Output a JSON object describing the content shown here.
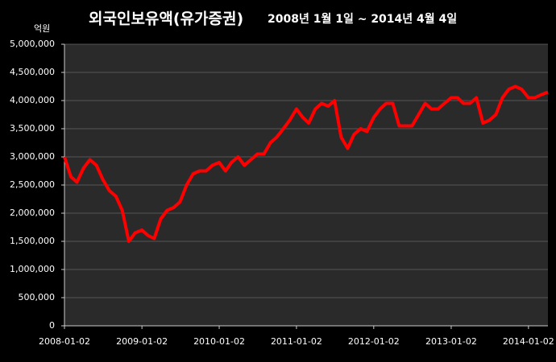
{
  "chart_data": {
    "type": "line",
    "title": "외국인보유액(유가증권)",
    "subtitle": "2008년 1월 1일 ~ 2014년 4월 4일",
    "y_unit": "억원",
    "x": [
      "2008-01-02",
      "2008-02-01",
      "2008-03-01",
      "2008-04-01",
      "2008-05-01",
      "2008-06-01",
      "2008-07-01",
      "2008-08-01",
      "2008-09-01",
      "2008-10-01",
      "2008-11-01",
      "2008-12-01",
      "2009-01-02",
      "2009-02-01",
      "2009-03-01",
      "2009-04-01",
      "2009-05-01",
      "2009-06-01",
      "2009-07-01",
      "2009-08-01",
      "2009-09-01",
      "2009-10-01",
      "2009-11-01",
      "2009-12-01",
      "2010-01-02",
      "2010-02-01",
      "2010-03-01",
      "2010-04-01",
      "2010-05-01",
      "2010-06-01",
      "2010-07-01",
      "2010-08-01",
      "2010-09-01",
      "2010-10-01",
      "2010-11-01",
      "2010-12-01",
      "2011-01-02",
      "2011-02-01",
      "2011-03-01",
      "2011-04-01",
      "2011-05-01",
      "2011-06-01",
      "2011-07-01",
      "2011-08-01",
      "2011-09-01",
      "2011-10-01",
      "2011-11-01",
      "2011-12-01",
      "2012-01-02",
      "2012-02-01",
      "2012-03-01",
      "2012-04-01",
      "2012-05-01",
      "2012-06-01",
      "2012-07-01",
      "2012-08-01",
      "2012-09-01",
      "2012-10-01",
      "2012-11-01",
      "2012-12-01",
      "2013-01-02",
      "2013-02-01",
      "2013-03-01",
      "2013-04-01",
      "2013-05-01",
      "2013-06-01",
      "2013-07-01",
      "2013-08-01",
      "2013-09-01",
      "2013-10-01",
      "2013-11-01",
      "2013-12-01",
      "2014-01-02",
      "2014-02-01",
      "2014-03-01",
      "2014-04-04"
    ],
    "series": [
      {
        "color": "#ff0000",
        "values": [
          3000000,
          2650000,
          2550000,
          2800000,
          2950000,
          2850000,
          2600000,
          2400000,
          2300000,
          2050000,
          1500000,
          1650000,
          1700000,
          1600000,
          1550000,
          1900000,
          2050000,
          2100000,
          2200000,
          2500000,
          2700000,
          2750000,
          2750000,
          2850000,
          2900000,
          2750000,
          2900000,
          3000000,
          2850000,
          2950000,
          3050000,
          3050000,
          3250000,
          3350000,
          3500000,
          3650000,
          3850000,
          3700000,
          3600000,
          3850000,
          3950000,
          3900000,
          4000000,
          3350000,
          3150000,
          3400000,
          3500000,
          3450000,
          3700000,
          3850000,
          3950000,
          3950000,
          3550000,
          3550000,
          3550000,
          3750000,
          3950000,
          3850000,
          3850000,
          3950000,
          4050000,
          4050000,
          3950000,
          3950000,
          4050000,
          3600000,
          3650000,
          3750000,
          4050000,
          4200000,
          4250000,
          4200000,
          4050000,
          4050000,
          4100000,
          4150000
        ]
      }
    ],
    "xlim": [
      "2008-01-02",
      "2014-04-04"
    ],
    "xticks": [
      "2008-01-02",
      "2009-01-02",
      "2010-01-02",
      "2011-01-02",
      "2012-01-02",
      "2013-01-02",
      "2014-01-02"
    ],
    "ylim": [
      0,
      5000000
    ],
    "yticks": [
      0,
      {
        "value": 500000,
        "label": "500,000"
      },
      {
        "value": 1000000,
        "label": "1,000,000"
      },
      {
        "value": 1500000,
        "label": "1,500,000"
      },
      {
        "value": 2000000,
        "label": "2,000,000"
      },
      {
        "value": 2500000,
        "label": "2,500,000"
      },
      {
        "value": 3000000,
        "label": "3,000,000"
      },
      {
        "value": 3500000,
        "label": "3,500,000"
      },
      {
        "value": 4000000,
        "label": "4,000,000"
      },
      {
        "value": 4500000,
        "label": "4,500,000"
      },
      {
        "value": 5000000,
        "label": "5,000,000"
      }
    ],
    "grid": true
  }
}
